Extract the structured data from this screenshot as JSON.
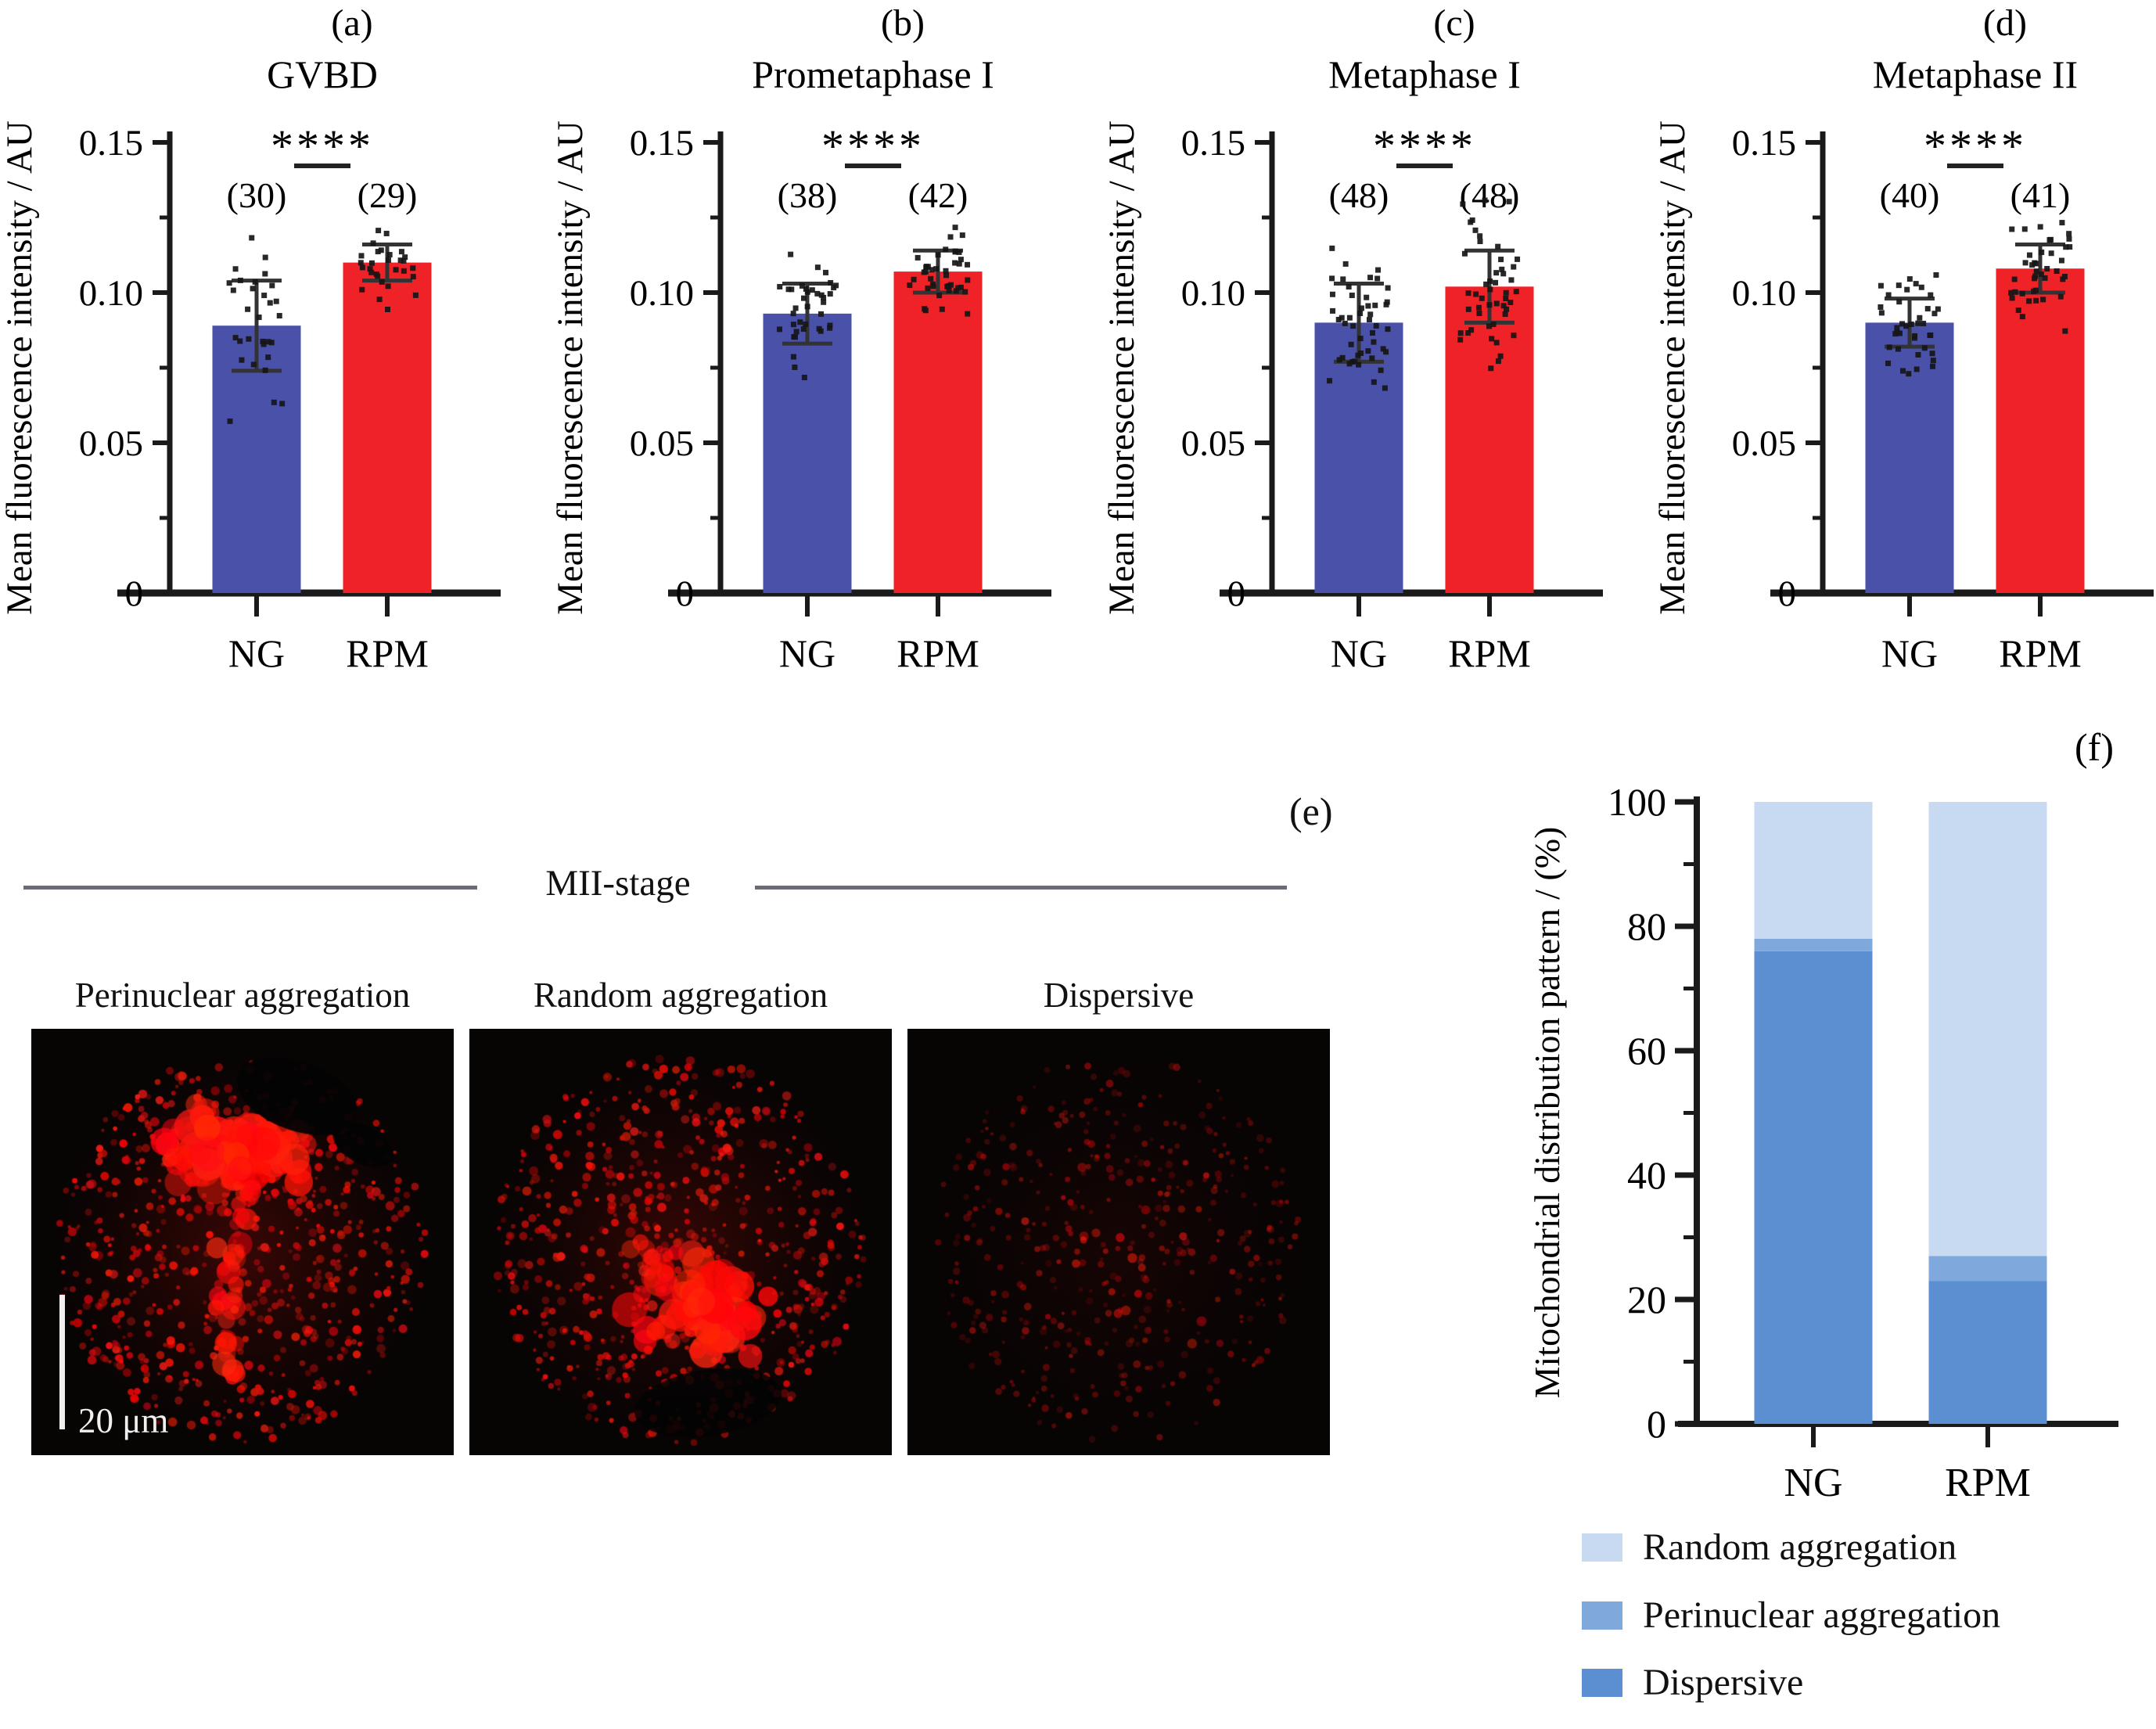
{
  "colors": {
    "ng_bar": "#4a51a8",
    "rpm_bar": "#ee2227",
    "axis": "#1a1a1a",
    "error_bar": "#333333",
    "scatter_dot": "#161616",
    "dispersive": "#5b8fd1",
    "perinuclear": "#7fa8dc",
    "random": "#c7daf1",
    "header_rule": "#6b6b75"
  },
  "panel_e": {
    "letter": "(e)",
    "header_label": "MII-stage",
    "items": [
      {
        "caption": "Perinuclear aggregation",
        "pattern": "perinuclear"
      },
      {
        "caption": "Random aggregation",
        "pattern": "random"
      },
      {
        "caption": "Dispersive",
        "pattern": "dispersive"
      }
    ],
    "scale_bar_label": "20 μm"
  },
  "chart_data": [
    {
      "id": "a",
      "type": "bar",
      "panel_letter": "(a)",
      "title": "GVBD",
      "ylabel": "Mean fluorescence intensity / AU",
      "categories": [
        "NG",
        "RPM"
      ],
      "values": [
        0.089,
        0.11
      ],
      "sd": [
        0.015,
        0.006
      ],
      "n": [
        30,
        29
      ],
      "n_labels": [
        "(30)",
        "(29)"
      ],
      "significance": "****",
      "ylim": [
        0,
        0.15
      ],
      "yticks": [
        0,
        0.05,
        0.1,
        0.15
      ],
      "ytick_labels": [
        "0",
        "0.05",
        "0.10",
        "0.15"
      ],
      "bar_color_keys": [
        "ng_bar",
        "rpm_bar"
      ],
      "error_bars": "±SD",
      "scatter_overlay": true,
      "grid": false
    },
    {
      "id": "b",
      "type": "bar",
      "panel_letter": "(b)",
      "title": "Prometaphase I",
      "ylabel": "Mean fluorescence intensity / AU",
      "categories": [
        "NG",
        "RPM"
      ],
      "values": [
        0.093,
        0.107
      ],
      "sd": [
        0.01,
        0.007
      ],
      "n": [
        38,
        42
      ],
      "n_labels": [
        "(38)",
        "(42)"
      ],
      "significance": "****",
      "ylim": [
        0,
        0.15
      ],
      "yticks": [
        0,
        0.05,
        0.1,
        0.15
      ],
      "ytick_labels": [
        "0",
        "0.05",
        "0.10",
        "0.15"
      ],
      "bar_color_keys": [
        "ng_bar",
        "rpm_bar"
      ],
      "error_bars": "±SD",
      "scatter_overlay": true,
      "grid": false
    },
    {
      "id": "c",
      "type": "bar",
      "panel_letter": "(c)",
      "title": "Metaphase I",
      "ylabel": "Mean fluorescence intensity / AU",
      "categories": [
        "NG",
        "RPM"
      ],
      "values": [
        0.09,
        0.102
      ],
      "sd": [
        0.013,
        0.012
      ],
      "n": [
        48,
        48
      ],
      "n_labels": [
        "(48)",
        "(48)"
      ],
      "significance": "****",
      "ylim": [
        0,
        0.15
      ],
      "yticks": [
        0,
        0.05,
        0.1,
        0.15
      ],
      "ytick_labels": [
        "0",
        "0.05",
        "0.10",
        "0.15"
      ],
      "bar_color_keys": [
        "ng_bar",
        "rpm_bar"
      ],
      "error_bars": "±SD",
      "scatter_overlay": true,
      "grid": false
    },
    {
      "id": "d",
      "type": "bar",
      "panel_letter": "(d)",
      "title": "Metaphase II",
      "ylabel": "Mean fluorescence intensity / AU",
      "categories": [
        "NG",
        "RPM"
      ],
      "values": [
        0.09,
        0.108
      ],
      "sd": [
        0.008,
        0.008
      ],
      "n": [
        40,
        41
      ],
      "n_labels": [
        "(40)",
        "(41)"
      ],
      "significance": "****",
      "ylim": [
        0,
        0.15
      ],
      "yticks": [
        0,
        0.05,
        0.1,
        0.15
      ],
      "ytick_labels": [
        "0",
        "0.05",
        "0.10",
        "0.15"
      ],
      "bar_color_keys": [
        "ng_bar",
        "rpm_bar"
      ],
      "error_bars": "±SD",
      "scatter_overlay": true,
      "grid": false
    },
    {
      "id": "f",
      "type": "stacked-bar",
      "panel_letter": "(f)",
      "ylabel": "Mitochondrial distribution pattern / (%)",
      "categories": [
        "NG",
        "RPM"
      ],
      "series": [
        {
          "name": "Dispersive",
          "color_key": "dispersive",
          "values": [
            76,
            23
          ]
        },
        {
          "name": "Perinuclear aggregation",
          "color_key": "perinuclear",
          "values": [
            2,
            4
          ]
        },
        {
          "name": "Random aggregation",
          "color_key": "random",
          "values": [
            22,
            73
          ]
        }
      ],
      "ylim": [
        0,
        100
      ],
      "yticks": [
        0,
        20,
        40,
        60,
        80,
        100
      ],
      "ytick_labels": [
        "0",
        "20",
        "40",
        "60",
        "80",
        "100"
      ],
      "legend": [
        {
          "label": "Random aggregation",
          "color_key": "random"
        },
        {
          "label": "Perinuclear aggregation",
          "color_key": "perinuclear"
        },
        {
          "label": "Dispersive",
          "color_key": "dispersive"
        }
      ],
      "legend_position": "below",
      "grid": false
    }
  ]
}
